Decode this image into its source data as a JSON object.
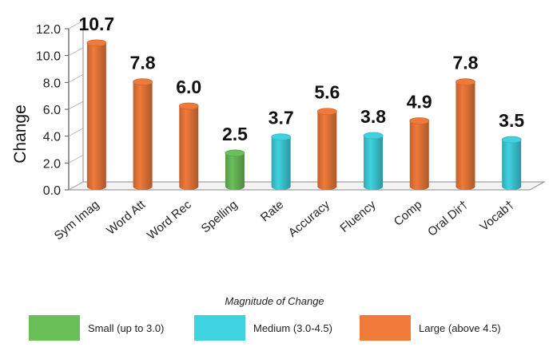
{
  "chart_data": {
    "type": "bar",
    "categories": [
      "Sym Imag",
      "Word Att",
      "Word Rec",
      "Spelling",
      "Rate",
      "Accuracy",
      "Fluency",
      "Comp",
      "Oral Dir†",
      "Vocab†"
    ],
    "values": [
      10.7,
      7.8,
      6.0,
      2.5,
      3.7,
      5.6,
      3.8,
      4.9,
      7.8,
      3.5
    ],
    "data_labels": [
      "10.7",
      "7.8",
      "6.0",
      "2.5",
      "3.7",
      "5.6",
      "3.8",
      "4.9",
      "7.8",
      "3.5"
    ],
    "bar_groups": [
      "large",
      "large",
      "large",
      "small",
      "medium",
      "large",
      "medium",
      "large",
      "large",
      "medium"
    ],
    "ylabel": "Change",
    "xlabel": "",
    "ylim": [
      0,
      12
    ],
    "yticks": [
      "0.0",
      "2.0",
      "4.0",
      "6.0",
      "8.0",
      "10.0",
      "12.0"
    ],
    "grid": false,
    "style": "3d-cylinder",
    "legend": {
      "title": "Magnitude of Change",
      "position": "bottom",
      "items": [
        {
          "key": "small",
          "label": "Small (up to 3.0)",
          "color": "#6bbf59"
        },
        {
          "key": "medium",
          "label": "Medium (3.0-4.5)",
          "color": "#3fd2e0"
        },
        {
          "key": "large",
          "label": "Large (above 4.5)",
          "color": "#f07a3a"
        }
      ]
    }
  }
}
